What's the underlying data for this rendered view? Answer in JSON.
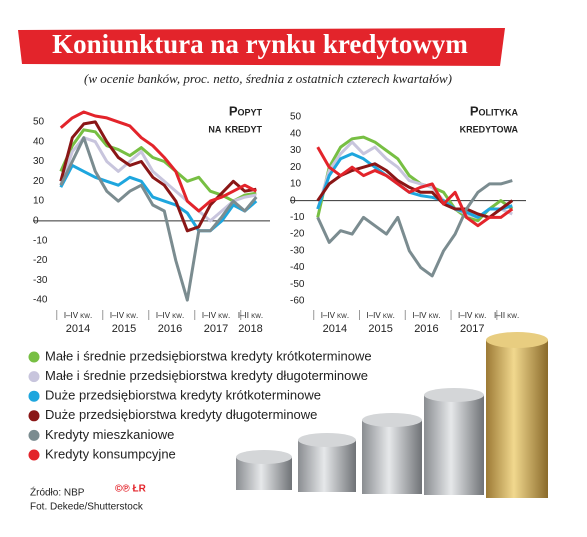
{
  "title": "Koniunktura na rynku kredytowym",
  "subtitle": "(w ocenie banków, proc. netto, średnia z ostatnich czterech kwartałów)",
  "chart_data": [
    {
      "type": "line",
      "title": [
        "Popyt",
        "na kredyt"
      ],
      "periods": [
        {
          "label": "I–IV kw.",
          "year": "2014"
        },
        {
          "label": "I–IV kw.",
          "year": "2015"
        },
        {
          "label": "I–IV kw.",
          "year": "2016"
        },
        {
          "label": "I–IV kw.",
          "year": "2017"
        },
        {
          "label": "I–II kw.",
          "year": "2018"
        }
      ],
      "ylim": [
        -43,
        55
      ],
      "yticks": [
        -40,
        -30,
        -20,
        -10,
        0,
        10,
        20,
        30,
        40,
        50
      ],
      "series": [
        {
          "name": "Małe i średnie przedsiębiorstwa kredyty krótkoterminowe",
          "color": "#77bf43",
          "values": [
            25,
            38,
            46,
            45,
            38,
            36,
            33,
            37,
            32,
            30,
            25,
            20,
            22,
            15,
            13,
            10,
            13,
            14
          ]
        },
        {
          "name": "Małe i średnie przedsiębiorstwa kredyty długoterminowe",
          "color": "#c8c5dd",
          "values": [
            18,
            35,
            42,
            40,
            30,
            25,
            30,
            35,
            25,
            20,
            15,
            10,
            5,
            0,
            5,
            10,
            12,
            13
          ]
        },
        {
          "name": "Duże przedsiębiorstwa kredyty krótkoterminowe",
          "color": "#1ea6de",
          "values": [
            17,
            28,
            25,
            22,
            20,
            18,
            22,
            20,
            12,
            10,
            8,
            4,
            -5,
            -5,
            0,
            8,
            5,
            10
          ]
        },
        {
          "name": "Duże przedsiębiorstwa kredyty długoterminowe",
          "color": "#8a1616",
          "values": [
            20,
            42,
            49,
            50,
            40,
            32,
            28,
            30,
            22,
            18,
            10,
            -5,
            -3,
            8,
            14,
            20,
            15,
            16
          ]
        },
        {
          "name": "Kredyty mieszkaniowe",
          "color": "#7b8c90",
          "values": [
            18,
            30,
            42,
            25,
            15,
            10,
            15,
            18,
            8,
            5,
            -20,
            -40,
            -5,
            -5,
            2,
            10,
            5,
            12
          ]
        },
        {
          "name": "Kredyty konsumpcyjne",
          "color": "#e3242b",
          "values": [
            47,
            52,
            55,
            53,
            52,
            50,
            48,
            42,
            38,
            32,
            25,
            10,
            5,
            10,
            12,
            15,
            18,
            15
          ]
        }
      ]
    },
    {
      "type": "line",
      "title": [
        "Polityka",
        "kredytowa"
      ],
      "periods": [
        {
          "label": "I–IV kw.",
          "year": "2014"
        },
        {
          "label": "I–IV kw.",
          "year": "2015"
        },
        {
          "label": "I–IV kw.",
          "year": "2016"
        },
        {
          "label": "I–IV kw.",
          "year": "2017"
        },
        {
          "label": "I–II kw."
        }
      ],
      "ylim": [
        -63,
        53
      ],
      "yticks": [
        -60,
        -50,
        -40,
        -30,
        -20,
        -10,
        0,
        10,
        20,
        30,
        40,
        50
      ],
      "series": [
        {
          "color": "#77bf43",
          "values": [
            -10,
            20,
            32,
            37,
            38,
            35,
            30,
            25,
            15,
            10,
            8,
            5,
            -5,
            -10,
            -12,
            -5,
            0,
            -5
          ]
        },
        {
          "color": "#c8c5dd",
          "values": [
            -5,
            18,
            28,
            35,
            28,
            32,
            25,
            20,
            12,
            10,
            8,
            0,
            -5,
            -8,
            -10,
            -5,
            -5,
            -8
          ]
        },
        {
          "color": "#1ea6de",
          "values": [
            -5,
            15,
            25,
            28,
            25,
            20,
            15,
            10,
            5,
            3,
            2,
            0,
            -5,
            -7,
            -10,
            -5,
            -5,
            -3
          ]
        },
        {
          "color": "#8a1616",
          "values": [
            0,
            10,
            15,
            18,
            20,
            22,
            18,
            12,
            8,
            5,
            5,
            -2,
            -5,
            -5,
            -8,
            -10,
            -5,
            0
          ]
        },
        {
          "color": "#7b8c90",
          "values": [
            -10,
            -25,
            -18,
            -20,
            -10,
            -15,
            -20,
            -10,
            -30,
            -40,
            -45,
            -30,
            -20,
            -5,
            5,
            10,
            10,
            12
          ]
        },
        {
          "color": "#e3242b",
          "values": [
            32,
            20,
            15,
            20,
            15,
            18,
            15,
            10,
            5,
            8,
            10,
            -2,
            5,
            -10,
            -15,
            -10,
            -10,
            -5
          ]
        }
      ]
    }
  ],
  "footer": {
    "source": "Źródło: NBP",
    "photo": "Fot. Dekede/Shutterstock",
    "mark": "©℗ ŁR"
  }
}
